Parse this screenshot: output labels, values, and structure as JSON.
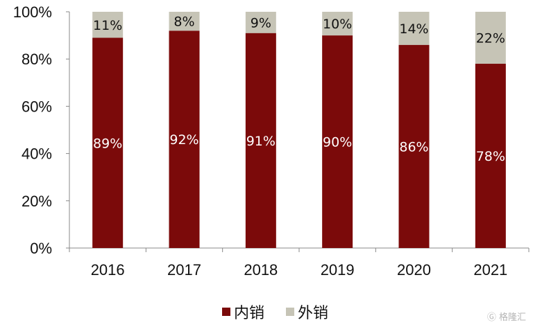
{
  "chart_data": {
    "type": "bar",
    "stacked": true,
    "categories": [
      "2016",
      "2017",
      "2018",
      "2019",
      "2020",
      "2021"
    ],
    "series": [
      {
        "name": "内销",
        "values": [
          89,
          92,
          91,
          90,
          86,
          78
        ],
        "color": "#7b0a0a",
        "label_color": "#ffffff"
      },
      {
        "name": "外销",
        "values": [
          11,
          8,
          9,
          10,
          14,
          22
        ],
        "color": "#c6c4b6",
        "label_color": "#111111"
      }
    ],
    "ylim": [
      0,
      100
    ],
    "y_ticks": [
      "0%",
      "20%",
      "40%",
      "60%",
      "80%",
      "100%"
    ],
    "grid": false,
    "legend_position": "bottom-center"
  },
  "watermark": "格隆汇"
}
